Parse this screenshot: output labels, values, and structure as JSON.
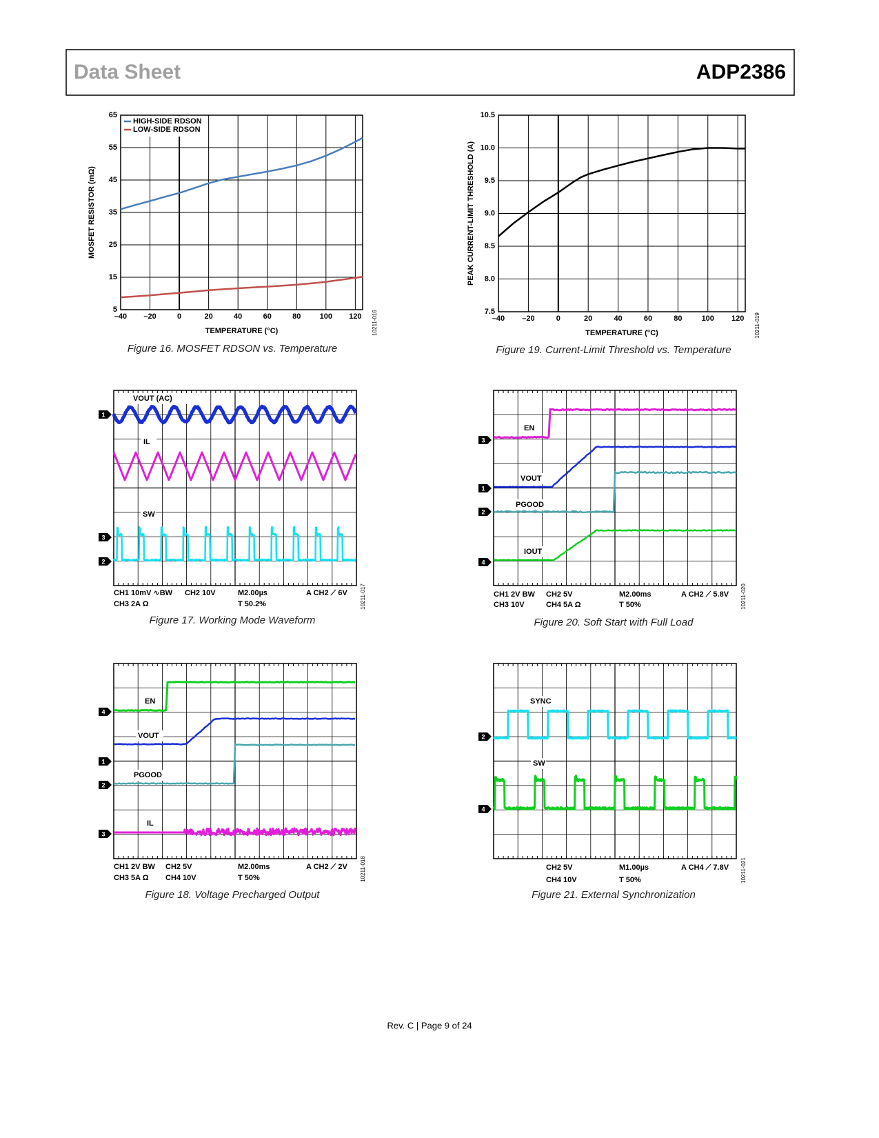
{
  "header": {
    "left": "Data Sheet",
    "right": "ADP2386"
  },
  "chart_data": [
    {
      "type": "line",
      "caption": "Figure 16. MOSFET RDSON vs. Temperature",
      "code": "10211-016",
      "xlabel": "TEMPERATURE (°C)",
      "ylabel": "MOSFET RESISTOR (mΩ)",
      "x": [
        -40,
        -30,
        -20,
        -10,
        0,
        10,
        20,
        30,
        40,
        50,
        60,
        70,
        80,
        90,
        100,
        110,
        120,
        125
      ],
      "series": [
        {
          "name": "HIGH-SIDE RDSON",
          "color": "#4a7ebb",
          "values": [
            36,
            37.3,
            38.5,
            39.8,
            41,
            42.5,
            44,
            45.2,
            46,
            46.8,
            47.6,
            48.5,
            49.5,
            50.8,
            52.5,
            54.5,
            56.8,
            58
          ]
        },
        {
          "name": "LOW-SIDE RDSON",
          "color": "#c0504d",
          "values": [
            8.8,
            9.1,
            9.4,
            9.8,
            10.2,
            10.6,
            11,
            11.3,
            11.6,
            11.85,
            12.1,
            12.4,
            12.7,
            13.1,
            13.6,
            14.2,
            14.8,
            15.2
          ]
        }
      ],
      "xlim": [
        -40,
        125
      ],
      "ylim": [
        5,
        65
      ],
      "xticks": [
        {
          "value": -40,
          "label": "–40"
        },
        {
          "value": -20,
          "label": "–20"
        },
        0,
        20,
        40,
        60,
        80,
        100,
        120
      ],
      "yticks": [
        5,
        15,
        25,
        35,
        45,
        55,
        65
      ],
      "grid": true,
      "legend": "top-left"
    },
    {
      "type": "line",
      "caption": "Figure 19. Current-Limit Threshold vs. Temperature",
      "code": "10211-019",
      "xlabel": "TEMPERATURE (°C)",
      "ylabel": "PEAK CURRENT-LIMIT THRESHOLD (A)",
      "x": [
        -40,
        -30,
        -20,
        -10,
        0,
        10,
        15,
        20,
        30,
        40,
        50,
        60,
        70,
        80,
        90,
        100,
        110,
        120,
        125
      ],
      "values": [
        8.65,
        8.85,
        9.02,
        9.18,
        9.32,
        9.48,
        9.55,
        9.6,
        9.67,
        9.73,
        9.79,
        9.84,
        9.89,
        9.94,
        9.98,
        10.0,
        10.0,
        9.99,
        9.99
      ],
      "color": "#000000",
      "xlim": [
        -40,
        125
      ],
      "ylim": [
        7.5,
        10.5
      ],
      "xticks": [
        {
          "value": -40,
          "label": "–40"
        },
        {
          "value": -20,
          "label": "–20"
        },
        0,
        20,
        40,
        60,
        80,
        100,
        120
      ],
      "yticks": [
        7.5,
        {
          "value": 8,
          "label": "8.0"
        },
        8.5,
        {
          "value": 9,
          "label": "9.0"
        },
        9.5,
        {
          "value": 10,
          "label": "10.0"
        },
        10.5
      ],
      "grid": true
    }
  ],
  "scopes": [
    {
      "caption": "Figure 17. Working Mode Waveform",
      "code": "10211-017",
      "traces": [
        "VOUT (AC)",
        "IL",
        "SW"
      ],
      "markers": [
        "1",
        "3",
        "2"
      ],
      "settings": [
        [
          "CH1 10mV ∿BW",
          "CH2 10V",
          "M2.00µs",
          "A CH2 ⟋ 6V"
        ],
        [
          "CH3 2A Ω",
          "T 50.2%"
        ]
      ]
    },
    {
      "caption": "Figure 20. Soft Start with Full Load",
      "code": "10211-020",
      "traces": [
        "EN",
        "VOUT",
        "PGOOD",
        "IOUT"
      ],
      "markers": [
        "3",
        "1",
        "2",
        "4"
      ],
      "settings": [
        [
          "CH1 2V BW",
          "CH2 5V",
          "M2.00ms",
          "A CH2 ⟋ 5.8V"
        ],
        [
          "CH3 10V",
          "CH4 5A Ω",
          "T 50%"
        ]
      ]
    },
    {
      "caption": "Figure 18. Voltage Precharged Output",
      "code": "10211-018",
      "traces": [
        "EN",
        "VOUT",
        "PGOOD",
        "IL"
      ],
      "markers": [
        "4",
        "1",
        "2",
        "3"
      ],
      "settings": [
        [
          "CH1 2V BW",
          "CH2 5V",
          "M2.00ms",
          "A CH2 ⟋ 2V"
        ],
        [
          "CH3 5A Ω",
          "CH4 10V",
          "T 50%"
        ]
      ]
    },
    {
      "caption": "Figure 21. External Synchronization",
      "code": "10211-021",
      "traces": [
        "SYNC",
        "SW"
      ],
      "markers": [
        "2",
        "4"
      ],
      "settings": [
        [
          "CH2 5V",
          "M1.00µs",
          "A CH4 ⟋ 7.8V"
        ],
        [
          "CH4 10V",
          "T 50%"
        ]
      ]
    }
  ],
  "footer": "Rev. C | Page 9 of 24"
}
